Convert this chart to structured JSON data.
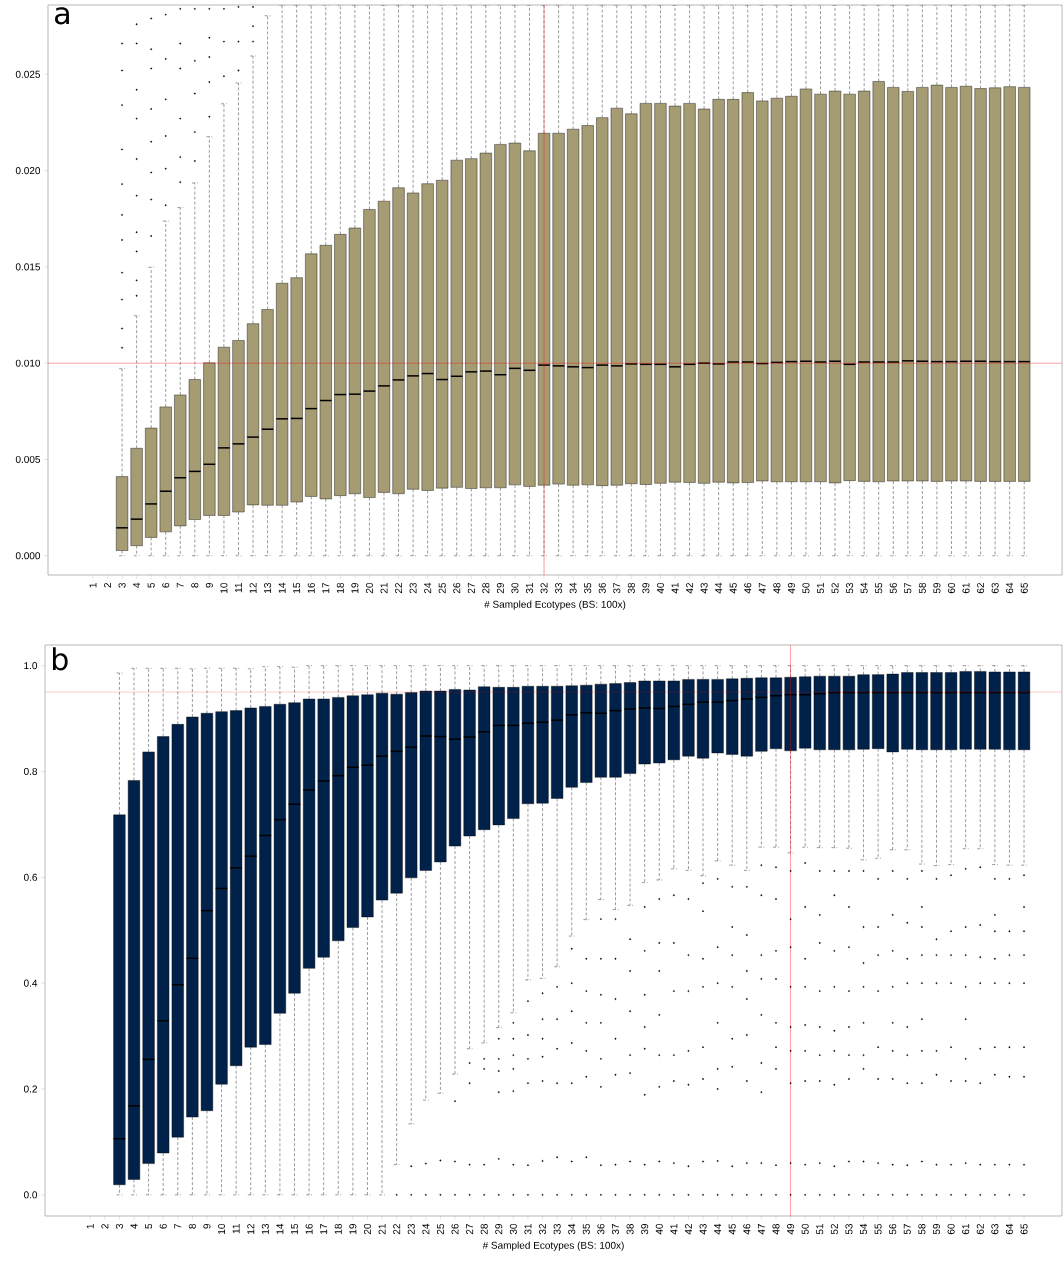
{
  "chart_data": [
    {
      "type": "box",
      "title": "a",
      "xlabel": "# Sampled Ecotypes (BS: 100x)",
      "color": "#a59c74",
      "categories": [
        "1",
        "2",
        "3",
        "4",
        "5",
        "6",
        "7",
        "8",
        "9",
        "10",
        "11",
        "12",
        "13",
        "14",
        "15",
        "16",
        "17",
        "18",
        "19",
        "20",
        "21",
        "22",
        "23",
        "24",
        "25",
        "26",
        "27",
        "28",
        "29",
        "30",
        "31",
        "32",
        "33",
        "34",
        "35",
        "36",
        "37",
        "38",
        "39",
        "40",
        "41",
        "42",
        "43",
        "44",
        "45",
        "46",
        "47",
        "48",
        "49",
        "50",
        "51",
        "52",
        "53",
        "54",
        "55",
        "56",
        "57",
        "58",
        "59",
        "60",
        "61",
        "62",
        "63",
        "64",
        "65"
      ],
      "ylim": [
        -0.001,
        0.0286
      ],
      "yticks": [
        {
          "value": 0,
          "label": "0.000"
        },
        {
          "value": 0.005,
          "label": "0.005"
        },
        {
          "value": 0.01,
          "label": "0.010"
        },
        {
          "value": 0.015,
          "label": "0.015"
        },
        {
          "value": 0.02,
          "label": "0.020"
        },
        {
          "value": 0.025,
          "label": "0.025"
        }
      ],
      "ref_lines": [
        {
          "axis": "y",
          "value": 0.01,
          "color": "#ff0000"
        },
        {
          "axis": "x",
          "value": "32",
          "color": "#ff0000"
        }
      ],
      "boxes": [
        null,
        null,
        {
          "low": 0,
          "q1": 0.00027,
          "median": 0.00145,
          "q3": 0.00411,
          "high": 0.00971,
          "outliers": [
            0.0266,
            0.0252,
            0.0234,
            0.0211,
            0.0193,
            0.0177,
            0.0164,
            0.0147,
            0.0133,
            0.0118,
            0.0108
          ]
        },
        {
          "low": 0,
          "q1": 0.00052,
          "median": 0.0019,
          "q3": 0.00558,
          "high": 0.01246,
          "outliers": [
            0.0276,
            0.0266,
            0.0242,
            0.0227,
            0.0206,
            0.0187,
            0.0168,
            0.0158,
            0.0143,
            0.0135
          ]
        },
        {
          "low": 0,
          "q1": 0.00095,
          "median": 0.00269,
          "q3": 0.00663,
          "high": 0.01498,
          "outliers": [
            0.0279,
            0.0263,
            0.0253,
            0.0232,
            0.0215,
            0.0199,
            0.0185,
            0.0166
          ]
        },
        {
          "low": 0,
          "q1": 0.00124,
          "median": 0.00335,
          "q3": 0.00773,
          "high": 0.01738,
          "outliers": [
            0.0281,
            0.0258,
            0.0237,
            0.0218,
            0.0201,
            0.0182
          ]
        },
        {
          "low": 0,
          "q1": 0.00155,
          "median": 0.00405,
          "q3": 0.00835,
          "high": 0.01808,
          "outliers": [
            0.0284,
            0.0266,
            0.0253,
            0.0227,
            0.0207,
            0.0194
          ]
        },
        {
          "low": 0,
          "q1": 0.00188,
          "median": 0.00438,
          "q3": 0.00915,
          "high": 0.01936,
          "outliers": [
            0.0284,
            0.0257,
            0.024,
            0.022,
            0.0205
          ]
        },
        {
          "low": 0,
          "q1": 0.00209,
          "median": 0.00475,
          "q3": 0.01002,
          "high": 0.02176,
          "outliers": [
            0.0284,
            0.0269,
            0.0259,
            0.0246,
            0.0228
          ]
        },
        {
          "low": 0,
          "q1": 0.00209,
          "median": 0.0056,
          "q3": 0.01083,
          "high": 0.02347,
          "outliers": [
            0.0284,
            0.0267,
            0.0249
          ]
        },
        {
          "low": 0,
          "q1": 0.00227,
          "median": 0.00581,
          "q3": 0.01118,
          "high": 0.02455,
          "outliers": [
            0.0285,
            0.0267,
            0.0252
          ]
        },
        {
          "low": 0,
          "q1": 0.00264,
          "median": 0.00616,
          "q3": 0.01205,
          "high": 0.02595,
          "outliers": [
            0.0285,
            0.0275,
            0.0267
          ]
        },
        {
          "low": 0,
          "q1": 0.00262,
          "median": 0.00657,
          "q3": 0.01279,
          "high": 0.02804
        },
        {
          "low": 0,
          "q1": 0.00262,
          "median": 0.00711,
          "q3": 0.01415,
          "high": 0.0286
        },
        {
          "low": 0,
          "q1": 0.00279,
          "median": 0.00713,
          "q3": 0.01444,
          "high": 0.0286
        },
        {
          "low": 0,
          "q1": 0.00308,
          "median": 0.00764,
          "q3": 0.01568,
          "high": 0.0286
        },
        {
          "low": 0,
          "q1": 0.00295,
          "median": 0.00806,
          "q3": 0.01612,
          "high": 0.0286
        },
        {
          "low": 0,
          "q1": 0.00312,
          "median": 0.00837,
          "q3": 0.01669,
          "high": 0.0286
        },
        {
          "low": 0,
          "q1": 0.00322,
          "median": 0.00839,
          "q3": 0.01702,
          "high": 0.0286
        },
        {
          "low": 0,
          "q1": 0.00302,
          "median": 0.00855,
          "q3": 0.01798,
          "high": 0.0286
        },
        {
          "low": 0,
          "q1": 0.00329,
          "median": 0.00882,
          "q3": 0.01841,
          "high": 0.0286
        },
        {
          "low": 0,
          "q1": 0.00322,
          "median": 0.00913,
          "q3": 0.01911,
          "high": 0.0286
        },
        {
          "low": 0,
          "q1": 0.00345,
          "median": 0.00934,
          "q3": 0.01884,
          "high": 0.0286
        },
        {
          "low": 0,
          "q1": 0.00339,
          "median": 0.00946,
          "q3": 0.01932,
          "high": 0.0286
        },
        {
          "low": 0,
          "q1": 0.00351,
          "median": 0.00915,
          "q3": 0.0195,
          "high": 0.0286
        },
        {
          "low": 0,
          "q1": 0.00355,
          "median": 0.00932,
          "q3": 0.02054,
          "high": 0.0286
        },
        {
          "low": 0,
          "q1": 0.00349,
          "median": 0.00955,
          "q3": 0.02062,
          "high": 0.0286
        },
        {
          "low": 0,
          "q1": 0.00353,
          "median": 0.00959,
          "q3": 0.02091,
          "high": 0.0286
        },
        {
          "low": 0,
          "q1": 0.00353,
          "median": 0.0094,
          "q3": 0.02136,
          "high": 0.0286
        },
        {
          "low": 0,
          "q1": 0.00368,
          "median": 0.00973,
          "q3": 0.02143,
          "high": 0.0286
        },
        {
          "low": 0,
          "q1": 0.0036,
          "median": 0.00963,
          "q3": 0.02103,
          "high": 0.0286
        },
        {
          "low": 0,
          "q1": 0.00366,
          "median": 0.0099,
          "q3": 0.02194,
          "high": 0.0286
        },
        {
          "low": 0,
          "q1": 0.00372,
          "median": 0.00986,
          "q3": 0.02194,
          "high": 0.0286
        },
        {
          "low": 0,
          "q1": 0.00366,
          "median": 0.00981,
          "q3": 0.02215,
          "high": 0.0286
        },
        {
          "low": 0,
          "q1": 0.00368,
          "median": 0.00977,
          "q3": 0.02234,
          "high": 0.0286
        },
        {
          "low": 0,
          "q1": 0.00364,
          "median": 0.0099,
          "q3": 0.02275,
          "high": 0.0286
        },
        {
          "low": 0,
          "q1": 0.00366,
          "median": 0.00986,
          "q3": 0.02324,
          "high": 0.0286
        },
        {
          "low": 0,
          "q1": 0.00374,
          "median": 0.00996,
          "q3": 0.02295,
          "high": 0.0286
        },
        {
          "low": 0,
          "q1": 0.0037,
          "median": 0.00994,
          "q3": 0.02349,
          "high": 0.0286
        },
        {
          "low": 0,
          "q1": 0.00376,
          "median": 0.00994,
          "q3": 0.02349,
          "high": 0.0286
        },
        {
          "low": 0,
          "q1": 0.00382,
          "median": 0.00981,
          "q3": 0.02335,
          "high": 0.0286
        },
        {
          "low": 0,
          "q1": 0.0038,
          "median": 0.00994,
          "q3": 0.02349,
          "high": 0.0286
        },
        {
          "low": 0,
          "q1": 0.00376,
          "median": 0.01,
          "q3": 0.0232,
          "high": 0.0286
        },
        {
          "low": 0,
          "q1": 0.00382,
          "median": 0.00996,
          "q3": 0.0237,
          "high": 0.0286
        },
        {
          "low": 0,
          "q1": 0.00378,
          "median": 0.01006,
          "q3": 0.0237,
          "high": 0.0286
        },
        {
          "low": 0,
          "q1": 0.0038,
          "median": 0.01006,
          "q3": 0.02405,
          "high": 0.0286
        },
        {
          "low": 0,
          "q1": 0.00388,
          "median": 0.00998,
          "q3": 0.02362,
          "high": 0.0286
        },
        {
          "low": 0,
          "q1": 0.00384,
          "median": 0.01004,
          "q3": 0.02376,
          "high": 0.0286
        },
        {
          "low": 0,
          "q1": 0.00384,
          "median": 0.01008,
          "q3": 0.02386,
          "high": 0.0286
        },
        {
          "low": 0,
          "q1": 0.00384,
          "median": 0.0101,
          "q3": 0.02424,
          "high": 0.0286
        },
        {
          "low": 0,
          "q1": 0.00384,
          "median": 0.01006,
          "q3": 0.02397,
          "high": 0.0286
        },
        {
          "low": 0,
          "q1": 0.00378,
          "median": 0.0101,
          "q3": 0.02413,
          "high": 0.0286
        },
        {
          "low": 0,
          "q1": 0.0039,
          "median": 0.00994,
          "q3": 0.02397,
          "high": 0.0286
        },
        {
          "low": 0,
          "q1": 0.00386,
          "median": 0.01006,
          "q3": 0.02413,
          "high": 0.0286
        },
        {
          "low": 0,
          "q1": 0.00384,
          "median": 0.01006,
          "q3": 0.02463,
          "high": 0.0286
        },
        {
          "low": 0,
          "q1": 0.00388,
          "median": 0.01006,
          "q3": 0.02432,
          "high": 0.0286
        },
        {
          "low": 0,
          "q1": 0.00388,
          "median": 0.01012,
          "q3": 0.02411,
          "high": 0.0286
        },
        {
          "low": 0,
          "q1": 0.00388,
          "median": 0.0101,
          "q3": 0.02432,
          "high": 0.0286
        },
        {
          "low": 0,
          "q1": 0.00386,
          "median": 0.01008,
          "q3": 0.02444,
          "high": 0.0286
        },
        {
          "low": 0,
          "q1": 0.00388,
          "median": 0.01008,
          "q3": 0.02432,
          "high": 0.0286
        },
        {
          "low": 0,
          "q1": 0.00388,
          "median": 0.0101,
          "q3": 0.02438,
          "high": 0.0286
        },
        {
          "low": 0,
          "q1": 0.00386,
          "median": 0.0101,
          "q3": 0.02426,
          "high": 0.0286
        },
        {
          "low": 0,
          "q1": 0.00386,
          "median": 0.01008,
          "q3": 0.0243,
          "high": 0.0286
        },
        {
          "low": 0,
          "q1": 0.00386,
          "median": 0.01008,
          "q3": 0.02436,
          "high": 0.0286
        },
        {
          "low": 0,
          "q1": 0.00386,
          "median": 0.01008,
          "q3": 0.02432,
          "high": 0.0286
        }
      ]
    },
    {
      "type": "box",
      "title": "b",
      "xlabel": "# Sampled Ecotypes (BS: 100x)",
      "color": "#00224a",
      "categories": [
        "1",
        "2",
        "3",
        "4",
        "5",
        "6",
        "7",
        "8",
        "9",
        "10",
        "11",
        "12",
        "13",
        "14",
        "15",
        "16",
        "17",
        "18",
        "19",
        "20",
        "21",
        "22",
        "23",
        "24",
        "25",
        "26",
        "27",
        "28",
        "29",
        "30",
        "31",
        "32",
        "33",
        "34",
        "35",
        "36",
        "37",
        "38",
        "39",
        "40",
        "41",
        "42",
        "43",
        "44",
        "45",
        "46",
        "47",
        "48",
        "49",
        "50",
        "51",
        "52",
        "53",
        "54",
        "55",
        "56",
        "57",
        "58",
        "59",
        "60",
        "61",
        "62",
        "63",
        "64",
        "65"
      ],
      "ylim": [
        -0.04,
        1.039
      ],
      "yticks": [
        {
          "value": 0,
          "label": "0.0"
        },
        {
          "value": 0.2,
          "label": "0.2"
        },
        {
          "value": 0.4,
          "label": "0.4"
        },
        {
          "value": 0.6,
          "label": "0.6"
        },
        {
          "value": 0.8,
          "label": "0.8"
        },
        {
          "value": 1,
          "label": "1.0"
        }
      ],
      "ref_lines": [
        {
          "axis": "y",
          "value": 0.95,
          "color": "#ff0000"
        },
        {
          "axis": "x",
          "value": "49",
          "color": "#ff0000"
        }
      ],
      "boxes": [
        null,
        null,
        {
          "low": 0,
          "q1": 0.019,
          "median": 0.106,
          "q3": 0.718,
          "high": 0.986
        },
        {
          "low": 0,
          "q1": 0.029,
          "median": 0.168,
          "q3": 0.783,
          "high": 0.995
        },
        {
          "low": 0,
          "q1": 0.059,
          "median": 0.256,
          "q3": 0.837,
          "high": 0.995
        },
        {
          "low": 0,
          "q1": 0.079,
          "median": 0.329,
          "q3": 0.866,
          "high": 0.995
        },
        {
          "low": 0,
          "q1": 0.109,
          "median": 0.397,
          "q3": 0.889,
          "high": 0.995
        },
        {
          "low": 0,
          "q1": 0.147,
          "median": 0.447,
          "q3": 0.903,
          "high": 0.994
        },
        {
          "low": 0,
          "q1": 0.159,
          "median": 0.537,
          "q3": 0.91,
          "high": 0.995
        },
        {
          "low": 0,
          "q1": 0.209,
          "median": 0.579,
          "q3": 0.913,
          "high": 0.995
        },
        {
          "low": 0,
          "q1": 0.244,
          "median": 0.618,
          "q3": 0.915,
          "high": 0.995
        },
        {
          "low": 0,
          "q1": 0.279,
          "median": 0.64,
          "q3": 0.92,
          "high": 0.994
        },
        {
          "low": 0,
          "q1": 0.284,
          "median": 0.679,
          "q3": 0.923,
          "high": 0.998
        },
        {
          "low": 0,
          "q1": 0.343,
          "median": 0.709,
          "q3": 0.927,
          "high": 0.998
        },
        {
          "low": 0,
          "q1": 0.381,
          "median": 0.738,
          "q3": 0.93,
          "high": 0.997
        },
        {
          "low": 0,
          "q1": 0.428,
          "median": 0.765,
          "q3": 0.937,
          "high": 1.0
        },
        {
          "low": 0,
          "q1": 0.449,
          "median": 0.782,
          "q3": 0.937,
          "high": 1.0
        },
        {
          "low": 0,
          "q1": 0.48,
          "median": 0.792,
          "q3": 0.94,
          "high": 1.0
        },
        {
          "low": 0,
          "q1": 0.505,
          "median": 0.808,
          "q3": 0.943,
          "high": 1.0
        },
        {
          "low": 0,
          "q1": 0.525,
          "median": 0.812,
          "q3": 0.945,
          "high": 1.0
        },
        {
          "low": 0,
          "q1": 0.557,
          "median": 0.829,
          "q3": 0.948,
          "high": 1.0
        },
        {
          "low": 0.057,
          "q1": 0.57,
          "median": 0.838,
          "q3": 0.946,
          "high": 1.0,
          "outliers": [
            0
          ]
        },
        {
          "low": 0.134,
          "q1": 0.599,
          "median": 0.846,
          "q3": 0.949,
          "high": 1.0,
          "outliers": [
            0.054,
            0
          ]
        },
        {
          "low": 0.179,
          "q1": 0.613,
          "median": 0.867,
          "q3": 0.952,
          "high": 1.0,
          "outliers": [
            0.059,
            0
          ]
        },
        {
          "low": 0.192,
          "q1": 0.629,
          "median": 0.866,
          "q3": 0.952,
          "high": 1.0,
          "outliers": [
            0.065,
            0
          ]
        },
        {
          "low": 0.228,
          "q1": 0.659,
          "median": 0.861,
          "q3": 0.955,
          "high": 1.0,
          "outliers": [
            0.177,
            0.063,
            0
          ]
        },
        {
          "low": 0.276,
          "q1": 0.678,
          "median": 0.865,
          "q3": 0.954,
          "high": 1.0,
          "outliers": [
            0.249,
            0.211,
            0.057,
            0
          ]
        },
        {
          "low": 0.287,
          "q1": 0.69,
          "median": 0.875,
          "q3": 0.96,
          "high": 1.0,
          "outliers": [
            0.257,
            0.238,
            0.057,
            0
          ]
        },
        {
          "low": 0.316,
          "q1": 0.699,
          "median": 0.887,
          "q3": 0.959,
          "high": 1.0,
          "outliers": [
            0.295,
            0.257,
            0.234,
            0.194,
            0.068,
            0
          ]
        },
        {
          "low": 0.344,
          "q1": 0.711,
          "median": 0.887,
          "q3": 0.959,
          "high": 1.0,
          "outliers": [
            0.325,
            0.295,
            0.264,
            0.238,
            0.196,
            0.057,
            0
          ]
        },
        {
          "low": 0.406,
          "q1": 0.739,
          "median": 0.891,
          "q3": 0.961,
          "high": 1.0,
          "outliers": [
            0.366,
            0.302,
            0.257,
            0.211,
            0.056,
            0
          ]
        },
        {
          "low": 0.409,
          "q1": 0.74,
          "median": 0.893,
          "q3": 0.961,
          "high": 1.0,
          "outliers": [
            0.381,
            0.332,
            0.295,
            0.261,
            0.215,
            0.064,
            0
          ]
        },
        {
          "low": 0.431,
          "q1": 0.749,
          "median": 0.897,
          "q3": 0.961,
          "high": 1.0,
          "outliers": [
            0.393,
            0.332,
            0.276,
            0.211,
            0.071,
            0
          ]
        },
        {
          "low": 0.489,
          "q1": 0.77,
          "median": 0.907,
          "q3": 0.962,
          "high": 1.0,
          "outliers": [
            0.465,
            0.4,
            0.347,
            0.287,
            0.211,
            0.063,
            0
          ]
        },
        {
          "low": 0.52,
          "q1": 0.779,
          "median": 0.911,
          "q3": 0.963,
          "high": 1.0,
          "outliers": [
            0.446,
            0.385,
            0.325,
            0.272,
            0.223,
            0.071,
            0
          ]
        },
        {
          "low": 0.558,
          "q1": 0.789,
          "median": 0.91,
          "q3": 0.965,
          "high": 1.0,
          "outliers": [
            0.521,
            0.446,
            0.378,
            0.325,
            0.257,
            0.204,
            0.056,
            0
          ]
        },
        {
          "low": 0.539,
          "q1": 0.789,
          "median": 0.915,
          "q3": 0.966,
          "high": 1.0,
          "outliers": [
            0.521,
            0.446,
            0.37,
            0.295,
            0.227,
            0.057,
            0
          ]
        },
        {
          "low": 0.547,
          "q1": 0.796,
          "median": 0.918,
          "q3": 0.968,
          "high": 1.0,
          "outliers": [
            0.483,
            0.423,
            0.347,
            0.264,
            0.23,
            0.063,
            0
          ]
        },
        {
          "low": 0.59,
          "q1": 0.814,
          "median": 0.92,
          "q3": 0.971,
          "high": 1.0,
          "outliers": [
            0.544,
            0.461,
            0.378,
            0.317,
            0.276,
            0.189,
            0.057,
            0
          ]
        },
        {
          "low": 0.595,
          "q1": 0.816,
          "median": 0.919,
          "q3": 0.971,
          "high": 1.0,
          "outliers": [
            0.559,
            0.476,
            0.423,
            0.34,
            0.264,
            0.204,
            0.063,
            0
          ]
        },
        {
          "low": 0.616,
          "q1": 0.822,
          "median": 0.923,
          "q3": 0.971,
          "high": 1.0,
          "outliers": [
            0.566,
            0.476,
            0.385,
            0.264,
            0.215,
            0.06,
            0
          ]
        },
        {
          "low": 0.613,
          "q1": 0.829,
          "median": 0.927,
          "q3": 0.974,
          "high": 1.0,
          "outliers": [
            0.559,
            0.453,
            0.385,
            0.272,
            0.208,
            0.054,
            0
          ]
        },
        {
          "low": 0.603,
          "q1": 0.825,
          "median": 0.931,
          "q3": 0.974,
          "high": 1.0,
          "outliers": [
            0.589,
            0.536,
            0.446,
            0.393,
            0.279,
            0.219,
            0.063,
            0
          ]
        },
        {
          "low": 0.631,
          "q1": 0.835,
          "median": 0.931,
          "q3": 0.974,
          "high": 1.0,
          "outliers": [
            0.597,
            0.468,
            0.4,
            0.325,
            0.238,
            0.2,
            0.064,
            0
          ]
        },
        {
          "low": 0.623,
          "q1": 0.832,
          "median": 0.934,
          "q3": 0.975,
          "high": 1.0,
          "outliers": [
            0.582,
            0.506,
            0.453,
            0.393,
            0.295,
            0.242,
            0.054,
            0
          ]
        },
        {
          "low": 0.613,
          "q1": 0.829,
          "median": 0.937,
          "q3": 0.976,
          "high": 1.0,
          "outliers": [
            0.582,
            0.491,
            0.423,
            0.37,
            0.302,
            0.215,
            0.06,
            0
          ]
        },
        {
          "low": 0.657,
          "q1": 0.838,
          "median": 0.94,
          "q3": 0.977,
          "high": 1.0,
          "outliers": [
            0.623,
            0.566,
            0.453,
            0.408,
            0.34,
            0.249,
            0.194,
            0.06,
            0
          ]
        },
        {
          "low": 0.657,
          "q1": 0.843,
          "median": 0.943,
          "q3": 0.977,
          "high": 1.0,
          "outliers": [
            0.619,
            0.559,
            0.461,
            0.408,
            0.325,
            0.279,
            0.238,
            0.056,
            0
          ]
        },
        {
          "low": 0.646,
          "q1": 0.839,
          "median": 0.945,
          "q3": 0.978,
          "high": 1.0,
          "outliers": [
            0.612,
            0.521,
            0.468,
            0.393,
            0.317,
            0.272,
            0.211,
            0.06,
            0
          ]
        },
        {
          "low": 0.657,
          "q1": 0.844,
          "median": 0.945,
          "q3": 0.979,
          "high": 1.0,
          "outliers": [
            0.627,
            0.544,
            0.446,
            0.393,
            0.321,
            0.272,
            0.215,
            0.057,
            0
          ]
        },
        {
          "low": 0.656,
          "q1": 0.841,
          "median": 0.947,
          "q3": 0.98,
          "high": 1.0,
          "outliers": [
            0.612,
            0.529,
            0.476,
            0.385,
            0.317,
            0.264,
            0.215,
            0.06,
            0
          ]
        },
        {
          "low": 0.656,
          "q1": 0.841,
          "median": 0.949,
          "q3": 0.98,
          "high": 1.0,
          "outliers": [
            0.612,
            0.566,
            0.461,
            0.393,
            0.31,
            0.272,
            0.208,
            0.054,
            0
          ]
        },
        {
          "low": 0.655,
          "q1": 0.841,
          "median": 0.949,
          "q3": 0.98,
          "high": 1.0,
          "outliers": [
            0.612,
            0.544,
            0.468,
            0.385,
            0.317,
            0.264,
            0.219,
            0.063,
            0
          ]
        },
        {
          "low": 0.633,
          "q1": 0.842,
          "median": 0.949,
          "q3": 0.983,
          "high": 1.0,
          "outliers": [
            0.612,
            0.506,
            0.438,
            0.393,
            0.325,
            0.264,
            0.238,
            0.063,
            0
          ]
        },
        {
          "low": 0.636,
          "q1": 0.843,
          "median": 0.949,
          "q3": 0.983,
          "high": 1.0,
          "outliers": [
            0.597,
            0.506,
            0.453,
            0.385,
            0.279,
            0.219,
            0.06,
            0
          ]
        },
        {
          "low": 0.652,
          "q1": 0.837,
          "median": 0.949,
          "q3": 0.984,
          "high": 1.0,
          "outliers": [
            0.612,
            0.529,
            0.461,
            0.393,
            0.325,
            0.272,
            0.219,
            0.057,
            0
          ]
        },
        {
          "low": 0.652,
          "q1": 0.842,
          "median": 0.949,
          "q3": 0.987,
          "high": 1.0,
          "outliers": [
            0.597,
            0.514,
            0.446,
            0.4,
            0.317,
            0.264,
            0.211,
            0.056,
            0
          ]
        },
        {
          "low": 0.625,
          "q1": 0.841,
          "median": 0.949,
          "q3": 0.987,
          "high": 1.0,
          "outliers": [
            0.612,
            0.544,
            0.506,
            0.453,
            0.4,
            0.332,
            0.272,
            0.211,
            0.063,
            0
          ]
        },
        {
          "low": 0.622,
          "q1": 0.841,
          "median": 0.949,
          "q3": 0.987,
          "high": 1.0,
          "outliers": [
            0.597,
            0.483,
            0.453,
            0.4,
            0.272,
            0.227,
            0.057,
            0
          ]
        },
        {
          "low": 0.624,
          "q1": 0.841,
          "median": 0.949,
          "q3": 0.987,
          "high": 1.0,
          "outliers": [
            0.604,
            0.498,
            0.453,
            0.4,
            0.279,
            0.215,
            0.057,
            0
          ]
        },
        {
          "low": 0.654,
          "q1": 0.842,
          "median": 0.949,
          "q3": 0.989,
          "high": 1.0,
          "outliers": [
            0.616,
            0.506,
            0.453,
            0.393,
            0.332,
            0.257,
            0.215,
            0.06,
            0
          ]
        },
        {
          "low": 0.654,
          "q1": 0.842,
          "median": 0.949,
          "q3": 0.989,
          "high": 1.0,
          "outliers": [
            0.619,
            0.51,
            0.449,
            0.4,
            0.276,
            0.211,
            0.057,
            0
          ]
        },
        {
          "low": 0.624,
          "q1": 0.842,
          "median": 0.949,
          "q3": 0.988,
          "high": 1.0,
          "outliers": [
            0.597,
            0.529,
            0.498,
            0.446,
            0.4,
            0.279,
            0.227,
            0.057,
            0
          ]
        },
        {
          "low": 0.623,
          "q1": 0.841,
          "median": 0.949,
          "q3": 0.988,
          "high": 1.0,
          "outliers": [
            0.597,
            0.498,
            0.453,
            0.4,
            0.279,
            0.223,
            0.057,
            0
          ]
        },
        {
          "low": 0.623,
          "q1": 0.841,
          "median": 0.949,
          "q3": 0.988,
          "high": 1.0,
          "outliers": [
            0.604,
            0.544,
            0.498,
            0.453,
            0.4,
            0.279,
            0.223,
            0.057,
            0
          ]
        }
      ]
    }
  ]
}
